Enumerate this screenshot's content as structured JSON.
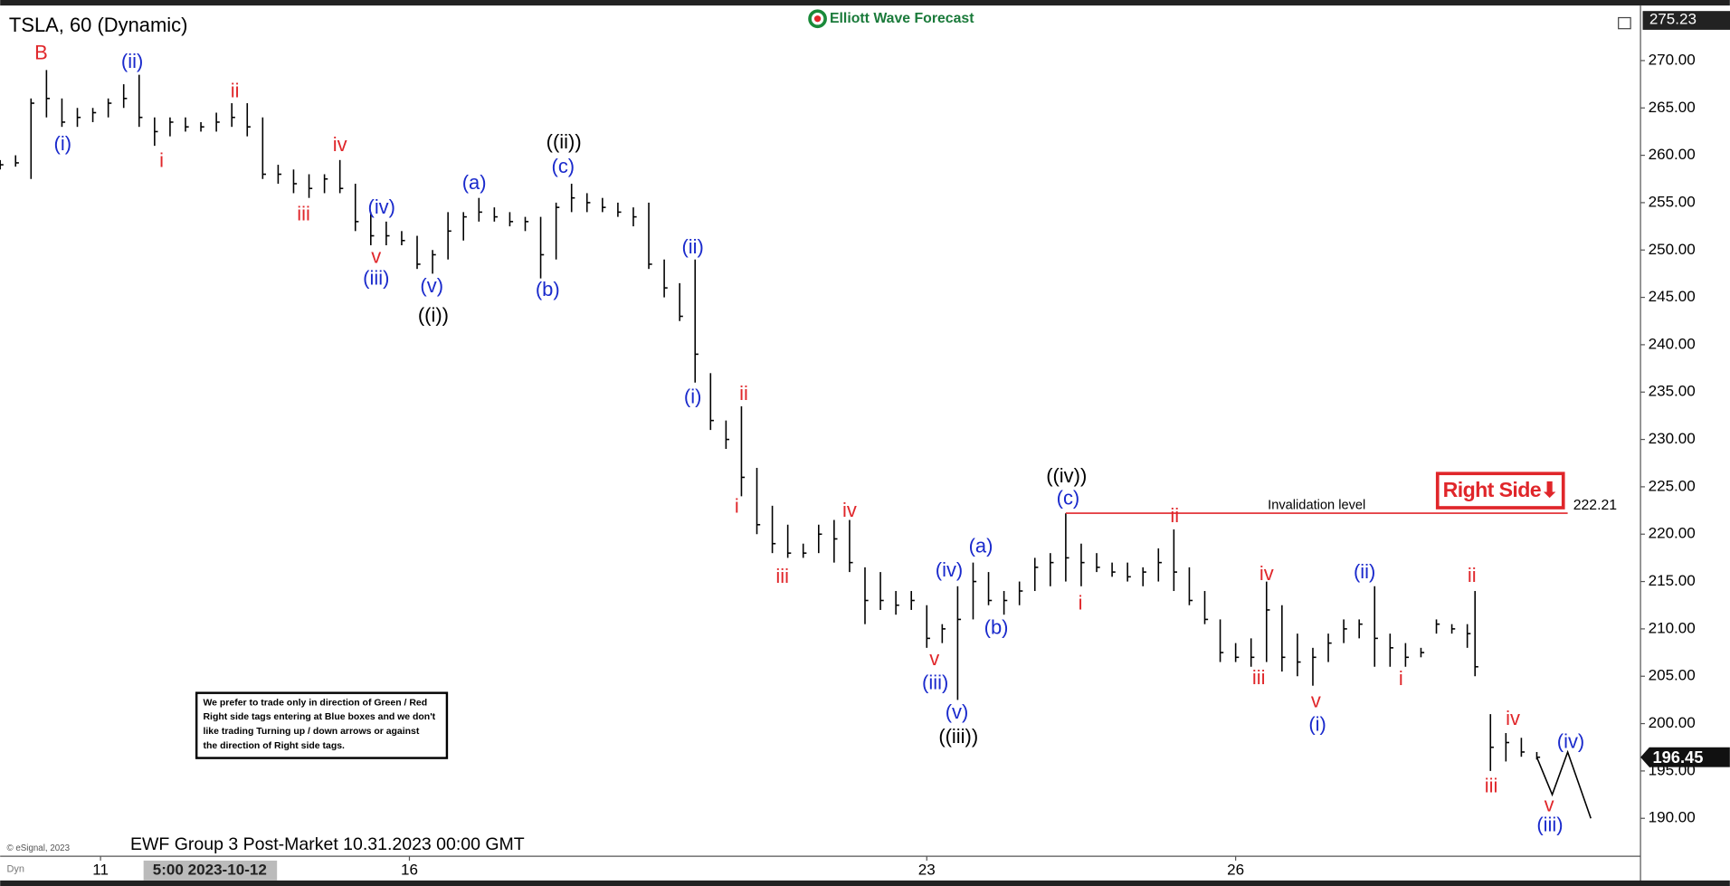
{
  "chart_data": {
    "type": "ohlc",
    "title": "TSLA, 60 (Dynamic)",
    "brand": "Elliott Wave Forecast",
    "footer": "EWF Group 3 Post-Market 10.31.2023 00:00 GMT",
    "copyright": "© eSignal, 2023",
    "corner_label": "Dyn",
    "cursor_time": "5:00 2023-10-12",
    "color": "#000000",
    "x": [
      0,
      2,
      4,
      6,
      8,
      10,
      12,
      14,
      16,
      18,
      20,
      22,
      24,
      26,
      28,
      30,
      32,
      34,
      36,
      38,
      40,
      42,
      44,
      46,
      48,
      50,
      52,
      54,
      56,
      58,
      60,
      62,
      64,
      66,
      68,
      70,
      72,
      74,
      76,
      78,
      80,
      82,
      84,
      86,
      88,
      90,
      92,
      94,
      96,
      98,
      100,
      102,
      104,
      106,
      108,
      110,
      112,
      114,
      116,
      118,
      120,
      122,
      124,
      126,
      128,
      130,
      132,
      134,
      136,
      138,
      140,
      142,
      144,
      146,
      148,
      150,
      152,
      154,
      156,
      158,
      160,
      162,
      164,
      166,
      168,
      170,
      172,
      174,
      176,
      178,
      180,
      182,
      184,
      186,
      188,
      190,
      191,
      193,
      195,
      197,
      199
    ],
    "high": [
      259.5,
      260,
      266,
      269,
      266,
      265,
      265,
      266,
      267.5,
      268.5,
      264,
      264,
      264,
      263.5,
      264.5,
      265.5,
      265.5,
      264,
      259,
      258.5,
      258,
      258,
      259.5,
      257,
      254,
      253,
      252,
      251.5,
      250,
      254,
      254,
      255.5,
      254.5,
      254,
      253.5,
      253.5,
      255,
      257,
      256,
      255.5,
      255,
      254.5,
      255,
      249,
      246.5,
      249,
      237,
      232,
      233.5,
      227,
      223,
      221,
      219,
      221,
      221.5,
      221.5,
      216.5,
      216,
      214,
      214,
      212.5,
      210.5,
      214.5,
      217,
      216,
      214,
      215,
      217.5,
      218,
      222.2,
      219,
      218,
      217,
      217,
      216.5,
      218.5,
      220.5,
      216.5,
      214,
      211,
      208.5,
      209,
      215,
      212.5,
      209.5,
      208,
      209.5,
      211,
      211,
      214.5,
      209.5,
      208.5,
      208,
      211,
      210.5,
      210.5,
      214,
      201,
      199,
      198.5,
      197
    ],
    "low": [
      258.5,
      258.8,
      257.5,
      264,
      263,
      263,
      263.5,
      264,
      265,
      263,
      261,
      262,
      262.5,
      262.5,
      262.5,
      263,
      262,
      257.5,
      257,
      256,
      255.5,
      256,
      256,
      252,
      250.5,
      250.5,
      250.5,
      248,
      247.5,
      249,
      251,
      253,
      253,
      252.5,
      252,
      247,
      249,
      254,
      254,
      254,
      253.5,
      252.5,
      248,
      245,
      242.5,
      236,
      231,
      229,
      224,
      220,
      218,
      217.5,
      217.5,
      218,
      217,
      216,
      210.5,
      212,
      211.5,
      212,
      208,
      208.5,
      202.5,
      211,
      212.5,
      211.5,
      212.5,
      214,
      214.5,
      215,
      214.5,
      216,
      215.5,
      215,
      214.5,
      215,
      214,
      212.5,
      210.5,
      206.5,
      206.5,
      206,
      206.5,
      205.5,
      205,
      204,
      206.5,
      208.5,
      209,
      206,
      206,
      206,
      207,
      209.5,
      209.5,
      208,
      205,
      195,
      196,
      196.5,
      196.2
    ],
    "close": [
      259,
      259.2,
      265.5,
      266,
      263.5,
      264,
      264.5,
      265.5,
      266,
      264,
      262.5,
      263.5,
      263,
      263,
      263.5,
      264,
      263,
      258,
      258,
      257,
      256.5,
      257.5,
      256.5,
      253,
      251.5,
      251.5,
      251,
      248.5,
      249.5,
      252,
      253.5,
      254,
      253.5,
      253,
      253,
      249.5,
      254.5,
      255.5,
      255,
      254.5,
      254,
      253.5,
      248.5,
      246,
      243,
      239,
      232,
      230,
      226,
      221,
      219,
      218,
      218,
      220,
      219.5,
      217,
      213,
      213,
      212.5,
      213,
      209,
      210,
      211,
      215,
      213,
      213,
      214,
      216.5,
      217,
      217.5,
      217,
      216.5,
      216,
      215.5,
      216,
      217,
      216,
      213,
      211,
      207.5,
      207,
      207,
      212,
      207,
      206.5,
      207,
      208.5,
      210,
      210.5,
      209,
      208,
      207,
      207.5,
      210.5,
      210,
      209.5,
      206,
      197.5,
      198,
      197,
      196.45
    ],
    "xlim": [
      0,
      212.43
    ],
    "ylim": [
      186,
      275.23
    ],
    "xticks": [
      {
        "value": 13,
        "label": "11"
      },
      {
        "value": 53,
        "label": "16"
      },
      {
        "value": 120,
        "label": "23"
      },
      {
        "value": 160,
        "label": "26"
      }
    ],
    "yticks": [
      {
        "value": 190,
        "label": "190.00"
      },
      {
        "value": 195,
        "label": "195.00"
      },
      {
        "value": 200,
        "label": "200.00"
      },
      {
        "value": 205,
        "label": "205.00"
      },
      {
        "value": 210,
        "label": "210.00"
      },
      {
        "value": 215,
        "label": "215.00"
      },
      {
        "value": 220,
        "label": "220.00"
      },
      {
        "value": 225,
        "label": "225.00"
      },
      {
        "value": 230,
        "label": "230.00"
      },
      {
        "value": 235,
        "label": "235.00"
      },
      {
        "value": 240,
        "label": "240.00"
      },
      {
        "value": 245,
        "label": "245.00"
      },
      {
        "value": 250,
        "label": "250.00"
      },
      {
        "value": 255,
        "label": "255.00"
      },
      {
        "value": 260,
        "label": "260.00"
      },
      {
        "value": 265,
        "label": "265.00"
      },
      {
        "value": 270,
        "label": "270.00"
      }
    ],
    "projection": {
      "color": "#000000",
      "x": [
        199,
        201,
        203,
        206
      ],
      "y": [
        196.45,
        192.5,
        197,
        190
      ]
    },
    "invalidation": {
      "label": "Invalidation level",
      "value": 222.21,
      "color": "#e0262a",
      "x": [
        138,
        203
      ]
    },
    "right_side": {
      "label": "Right Side⬇",
      "color": "#e0262a"
    },
    "disclaimer": [
      "We prefer to trade only in direction of Green / Red",
      "Right side tags entering at Blue boxes and we don't",
      "like trading Turning up / down arrows or against",
      "the direction of Right side tags."
    ],
    "wave_labels": [
      {
        "text": "B",
        "x": 5.3,
        "y": 270.7,
        "color": "#e0262a"
      },
      {
        "text": "(ii)",
        "x": 17.1,
        "y": 269.8,
        "color": "#1a2acc"
      },
      {
        "text": "(i)",
        "x": 8.1,
        "y": 261.1,
        "color": "#1a2acc"
      },
      {
        "text": "i",
        "x": 20.9,
        "y": 259.3,
        "color": "#e0262a"
      },
      {
        "text": "ii",
        "x": 30.4,
        "y": 266.7,
        "color": "#e0262a"
      },
      {
        "text": "iii",
        "x": 39.3,
        "y": 253.7,
        "color": "#e0262a"
      },
      {
        "text": "iv",
        "x": 44,
        "y": 261,
        "color": "#e0262a"
      },
      {
        "text": "(iv)",
        "x": 49.4,
        "y": 254.4,
        "color": "#1a2acc"
      },
      {
        "text": "v",
        "x": 48.7,
        "y": 249.2,
        "color": "#e0262a"
      },
      {
        "text": "(iii)",
        "x": 48.7,
        "y": 246.9,
        "color": "#1a2acc"
      },
      {
        "text": "(v)",
        "x": 55.9,
        "y": 246.1,
        "color": "#1a2acc"
      },
      {
        "text": "((i))",
        "x": 56.1,
        "y": 243,
        "color": "#000000"
      },
      {
        "text": "(a)",
        "x": 61.4,
        "y": 257,
        "color": "#1a2acc"
      },
      {
        "text": "((ii))",
        "x": 73,
        "y": 261.3,
        "color": "#000000"
      },
      {
        "text": "(c)",
        "x": 72.9,
        "y": 258.7,
        "color": "#1a2acc"
      },
      {
        "text": "(b)",
        "x": 70.9,
        "y": 245.7,
        "color": "#1a2acc"
      },
      {
        "text": "(ii)",
        "x": 89.7,
        "y": 250.2,
        "color": "#1a2acc"
      },
      {
        "text": "(i)",
        "x": 89.7,
        "y": 234.4,
        "color": "#1a2acc"
      },
      {
        "text": "ii",
        "x": 96.3,
        "y": 234.7,
        "color": "#e0262a"
      },
      {
        "text": "i",
        "x": 95.4,
        "y": 222.8,
        "color": "#e0262a"
      },
      {
        "text": "iii",
        "x": 101.3,
        "y": 215.4,
        "color": "#e0262a"
      },
      {
        "text": "iv",
        "x": 110,
        "y": 222.4,
        "color": "#e0262a"
      },
      {
        "text": "v",
        "x": 121,
        "y": 206.7,
        "color": "#e0262a"
      },
      {
        "text": "(iii)",
        "x": 121.1,
        "y": 204.2,
        "color": "#1a2acc"
      },
      {
        "text": "(iv)",
        "x": 122.9,
        "y": 216.1,
        "color": "#1a2acc"
      },
      {
        "text": "(v)",
        "x": 123.9,
        "y": 201.1,
        "color": "#1a2acc"
      },
      {
        "text": "((iii))",
        "x": 124.1,
        "y": 198.5,
        "color": "#000000"
      },
      {
        "text": "(a)",
        "x": 127,
        "y": 218.6,
        "color": "#1a2acc"
      },
      {
        "text": "(b)",
        "x": 129,
        "y": 210,
        "color": "#1a2acc"
      },
      {
        "text": "((iv))",
        "x": 138.1,
        "y": 226,
        "color": "#000000"
      },
      {
        "text": "(c)",
        "x": 138.3,
        "y": 223.7,
        "color": "#1a2acc"
      },
      {
        "text": "i",
        "x": 139.9,
        "y": 212.6,
        "color": "#e0262a"
      },
      {
        "text": "ii",
        "x": 152.1,
        "y": 221.8,
        "color": "#e0262a"
      },
      {
        "text": "iii",
        "x": 163,
        "y": 204.7,
        "color": "#e0262a"
      },
      {
        "text": "iv",
        "x": 164,
        "y": 215.7,
        "color": "#e0262a"
      },
      {
        "text": "v",
        "x": 170.4,
        "y": 202.3,
        "color": "#e0262a"
      },
      {
        "text": "(i)",
        "x": 170.6,
        "y": 199.8,
        "color": "#1a2acc"
      },
      {
        "text": "(ii)",
        "x": 176.7,
        "y": 215.9,
        "color": "#1a2acc"
      },
      {
        "text": "i",
        "x": 181.4,
        "y": 204.6,
        "color": "#e0262a"
      },
      {
        "text": "ii",
        "x": 190.6,
        "y": 215.5,
        "color": "#e0262a"
      },
      {
        "text": "iv",
        "x": 195.9,
        "y": 200.4,
        "color": "#e0262a"
      },
      {
        "text": "iii",
        "x": 193.1,
        "y": 193.3,
        "color": "#e0262a"
      },
      {
        "text": "(iv)",
        "x": 203.4,
        "y": 198,
        "color": "#1a2acc"
      },
      {
        "text": "v",
        "x": 200.6,
        "y": 191.3,
        "color": "#e0262a"
      },
      {
        "text": "(iii)",
        "x": 200.7,
        "y": 189.2,
        "color": "#1a2acc"
      }
    ]
  }
}
